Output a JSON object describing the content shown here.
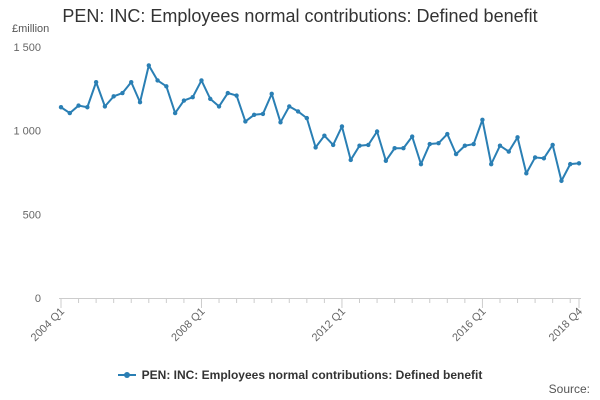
{
  "colors": {
    "series": "#2a7fb4",
    "axis": "#cccccc",
    "text": "#666666"
  },
  "source_label": "Source:",
  "chart_data": {
    "type": "line",
    "title": "PEN: INC: Employees normal contributions: Defined benefit",
    "ylabel": "£million",
    "xlabel": "",
    "ylim": [
      0,
      1500
    ],
    "yticks": [
      0,
      500,
      1000,
      1500
    ],
    "ytick_labels": [
      "0",
      "500",
      "1 000",
      "1 500"
    ],
    "xtick_labels": [
      "2004 Q1",
      "2008 Q1",
      "2012 Q1",
      "2016 Q1",
      "2018 Q4"
    ],
    "xtick_indices": [
      0,
      16,
      32,
      48,
      59
    ],
    "legend": "PEN: INC: Employees normal contributions: Defined benefit",
    "categories": [
      "2004 Q1",
      "2004 Q2",
      "2004 Q3",
      "2004 Q4",
      "2005 Q1",
      "2005 Q2",
      "2005 Q3",
      "2005 Q4",
      "2006 Q1",
      "2006 Q2",
      "2006 Q3",
      "2006 Q4",
      "2007 Q1",
      "2007 Q2",
      "2007 Q3",
      "2007 Q4",
      "2008 Q1",
      "2008 Q2",
      "2008 Q3",
      "2008 Q4",
      "2009 Q1",
      "2009 Q2",
      "2009 Q3",
      "2009 Q4",
      "2010 Q1",
      "2010 Q2",
      "2010 Q3",
      "2010 Q4",
      "2011 Q1",
      "2011 Q2",
      "2011 Q3",
      "2011 Q4",
      "2012 Q1",
      "2012 Q2",
      "2012 Q3",
      "2012 Q4",
      "2013 Q1",
      "2013 Q2",
      "2013 Q3",
      "2013 Q4",
      "2014 Q1",
      "2014 Q2",
      "2014 Q3",
      "2014 Q4",
      "2015 Q1",
      "2015 Q2",
      "2015 Q3",
      "2015 Q4",
      "2016 Q1",
      "2016 Q2",
      "2016 Q3",
      "2016 Q4",
      "2017 Q1",
      "2017 Q2",
      "2017 Q3",
      "2017 Q4",
      "2018 Q1",
      "2018 Q2",
      "2018 Q3",
      "2018 Q4"
    ],
    "series": [
      {
        "name": "PEN: INC: Employees normal contributions: Defined benefit",
        "values": [
          1140,
          1105,
          1150,
          1140,
          1290,
          1145,
          1205,
          1225,
          1290,
          1170,
          1390,
          1300,
          1265,
          1105,
          1180,
          1200,
          1300,
          1190,
          1145,
          1225,
          1210,
          1055,
          1095,
          1100,
          1220,
          1050,
          1145,
          1115,
          1075,
          900,
          970,
          915,
          1025,
          825,
          910,
          915,
          995,
          820,
          895,
          895,
          965,
          800,
          920,
          925,
          980,
          860,
          910,
          920,
          1065,
          800,
          910,
          875,
          960,
          745,
          840,
          835,
          915,
          700,
          800,
          805
        ]
      }
    ]
  }
}
